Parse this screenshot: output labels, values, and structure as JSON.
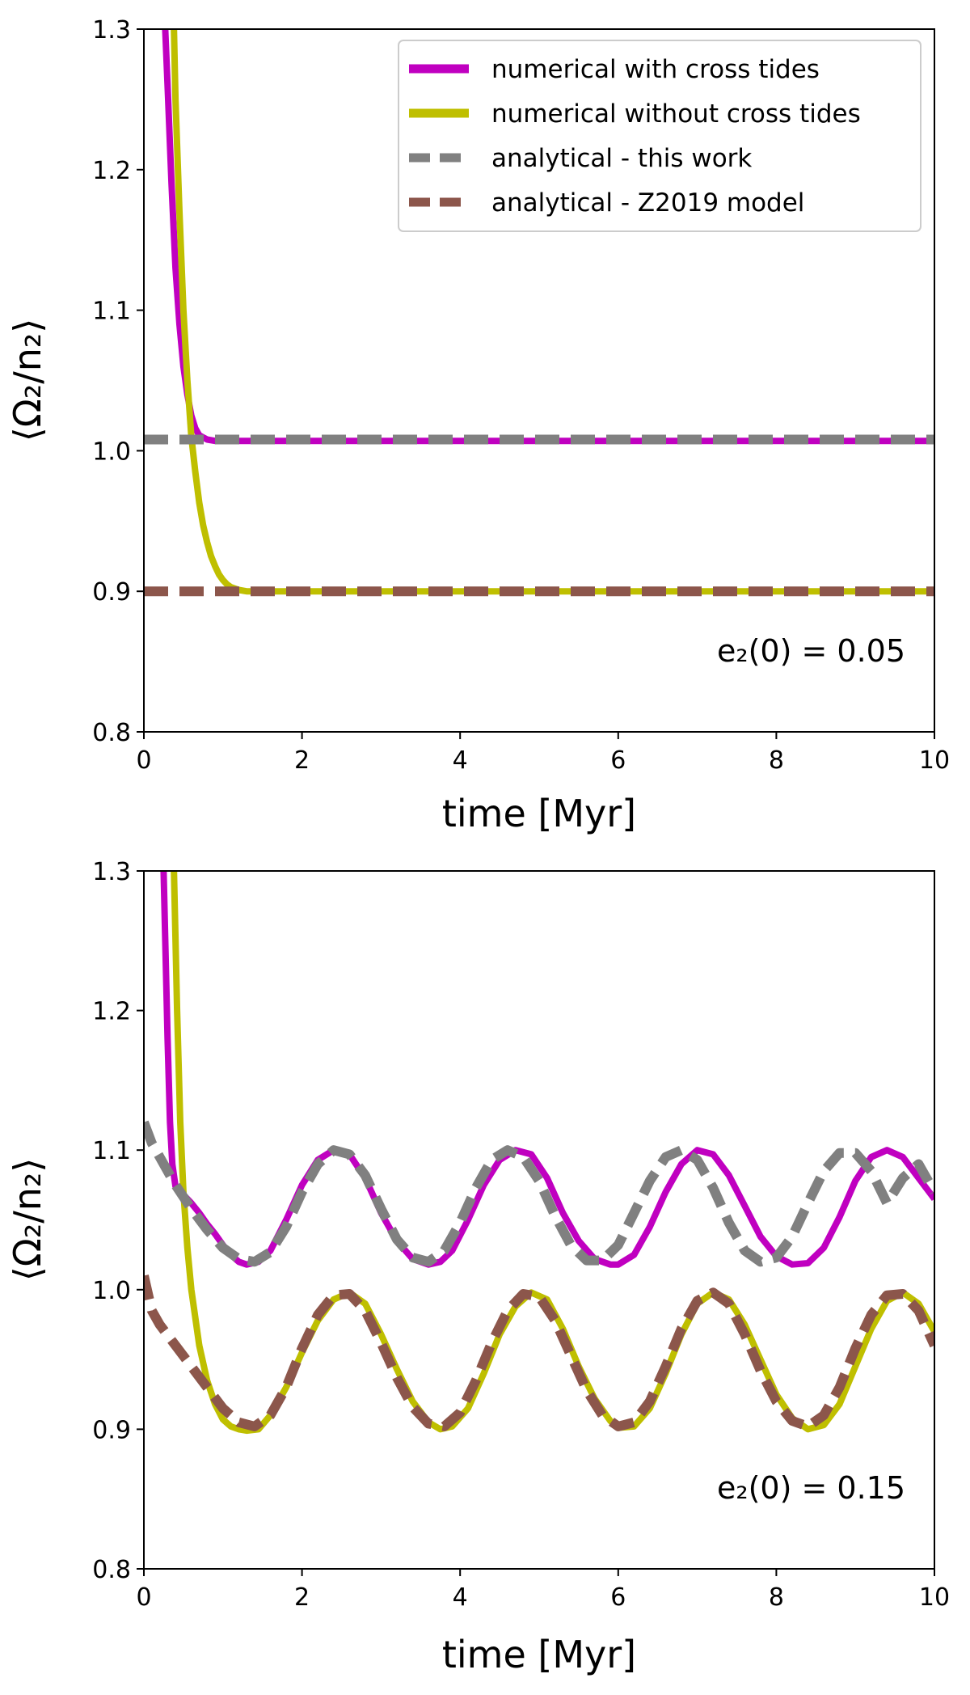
{
  "legend": {
    "entries": [
      {
        "label": "numerical with cross tides",
        "color": "#c000c0",
        "style": "solid"
      },
      {
        "label": "numerical without cross tides",
        "color": "#bfbf00",
        "style": "solid"
      },
      {
        "label": "analytical - this work",
        "color": "#808080",
        "style": "dashed"
      },
      {
        "label": "analytical - Z2019 model",
        "color": "#8c564b",
        "style": "dashed"
      }
    ]
  },
  "chart_data": [
    {
      "type": "line",
      "xlabel": "time [Myr]",
      "ylabel": "⟨Ω₂/n₂⟩",
      "xlim": [
        0,
        10
      ],
      "ylim": [
        0.8,
        1.3
      ],
      "xticks": [
        "0",
        "2",
        "4",
        "6",
        "8",
        "10"
      ],
      "yticks": [
        "0.8",
        "0.9",
        "1.0",
        "1.1",
        "1.2",
        "1.3"
      ],
      "annotation": "e₂(0) = 0.05",
      "legend_position": "top-right",
      "grid": false,
      "series": [
        {
          "name": "numerical with cross tides",
          "color": "#c000c0",
          "style": "solid",
          "x": [
            0.27,
            0.3,
            0.35,
            0.4,
            0.45,
            0.5,
            0.55,
            0.6,
            0.65,
            0.7,
            0.8,
            0.9,
            1.0,
            1.5,
            2,
            4,
            6,
            8,
            10
          ],
          "y": [
            1.3,
            1.26,
            1.19,
            1.13,
            1.09,
            1.06,
            1.04,
            1.025,
            1.016,
            1.011,
            1.008,
            1.007,
            1.007,
            1.007,
            1.007,
            1.007,
            1.007,
            1.007,
            1.007
          ]
        },
        {
          "name": "numerical without cross tides",
          "color": "#bfbf00",
          "style": "solid",
          "x": [
            0.38,
            0.4,
            0.45,
            0.5,
            0.55,
            0.6,
            0.65,
            0.7,
            0.75,
            0.8,
            0.85,
            0.9,
            0.95,
            1.0,
            1.05,
            1.1,
            1.2,
            1.3,
            1.5,
            2,
            4,
            6,
            8,
            10
          ],
          "y": [
            1.3,
            1.25,
            1.17,
            1.1,
            1.05,
            1.01,
            0.985,
            0.963,
            0.947,
            0.935,
            0.925,
            0.918,
            0.912,
            0.908,
            0.905,
            0.903,
            0.901,
            0.9,
            0.9,
            0.9,
            0.9,
            0.9,
            0.9,
            0.9
          ]
        },
        {
          "name": "analytical - this work",
          "color": "#808080",
          "style": "dashed",
          "x": [
            0,
            10
          ],
          "y": [
            1.008,
            1.008
          ]
        },
        {
          "name": "analytical - Z2019 model",
          "color": "#8c564b",
          "style": "dashed",
          "x": [
            0,
            10
          ],
          "y": [
            0.9,
            0.9
          ]
        }
      ]
    },
    {
      "type": "line",
      "xlabel": "time [Myr]",
      "ylabel": "⟨Ω₂/n₂⟩",
      "xlim": [
        0,
        10
      ],
      "ylim": [
        0.8,
        1.3
      ],
      "xticks": [
        "0",
        "2",
        "4",
        "6",
        "8",
        "10"
      ],
      "yticks": [
        "0.8",
        "0.9",
        "1.0",
        "1.1",
        "1.2",
        "1.3"
      ],
      "annotation": "e₂(0) = 0.15",
      "grid": false,
      "series": [
        {
          "name": "numerical with cross tides",
          "color": "#c000c0",
          "style": "solid",
          "x": [
            0.25,
            0.3,
            0.33,
            0.36,
            0.4,
            0.5,
            0.6,
            0.7,
            0.8,
            0.9,
            1.0,
            1.1,
            1.2,
            1.3,
            1.45,
            1.6,
            1.8,
            2.0,
            2.2,
            2.4,
            2.6,
            2.8,
            3.0,
            3.2,
            3.4,
            3.6,
            3.75,
            3.9,
            4.1,
            4.3,
            4.5,
            4.7,
            4.9,
            5.1,
            5.3,
            5.5,
            5.7,
            5.9,
            6.0,
            6.2,
            6.4,
            6.6,
            6.8,
            7.0,
            7.2,
            7.4,
            7.6,
            7.8,
            8.0,
            8.2,
            8.4,
            8.6,
            8.8,
            9.0,
            9.2,
            9.4,
            9.6,
            9.8,
            10.0
          ],
          "y": [
            1.3,
            1.18,
            1.12,
            1.09,
            1.074,
            1.068,
            1.062,
            1.055,
            1.047,
            1.04,
            1.032,
            1.025,
            1.02,
            1.018,
            1.02,
            1.028,
            1.05,
            1.075,
            1.093,
            1.1,
            1.097,
            1.08,
            1.055,
            1.035,
            1.022,
            1.018,
            1.02,
            1.028,
            1.05,
            1.075,
            1.093,
            1.1,
            1.097,
            1.08,
            1.055,
            1.035,
            1.022,
            1.018,
            1.018,
            1.025,
            1.045,
            1.07,
            1.09,
            1.1,
            1.097,
            1.082,
            1.06,
            1.038,
            1.024,
            1.018,
            1.019,
            1.03,
            1.052,
            1.078,
            1.095,
            1.1,
            1.095,
            1.08,
            1.065
          ]
        },
        {
          "name": "numerical without cross tides",
          "color": "#bfbf00",
          "style": "solid",
          "x": [
            0.38,
            0.42,
            0.46,
            0.5,
            0.55,
            0.6,
            0.7,
            0.8,
            0.9,
            1.0,
            1.1,
            1.2,
            1.3,
            1.45,
            1.6,
            1.8,
            2.0,
            2.2,
            2.4,
            2.6,
            2.8,
            3.0,
            3.2,
            3.4,
            3.6,
            3.75,
            3.9,
            4.1,
            4.3,
            4.5,
            4.7,
            4.9,
            5.1,
            5.3,
            5.5,
            5.7,
            5.9,
            6.0,
            6.2,
            6.4,
            6.6,
            6.8,
            7.0,
            7.2,
            7.4,
            7.6,
            7.8,
            8.0,
            8.2,
            8.4,
            8.6,
            8.8,
            9.0,
            9.2,
            9.4,
            9.6,
            9.8,
            10.0
          ],
          "y": [
            1.3,
            1.2,
            1.12,
            1.07,
            1.03,
            1.0,
            0.96,
            0.935,
            0.918,
            0.907,
            0.902,
            0.9,
            0.899,
            0.9,
            0.91,
            0.93,
            0.955,
            0.978,
            0.993,
            0.998,
            0.99,
            0.968,
            0.943,
            0.92,
            0.905,
            0.9,
            0.902,
            0.915,
            0.94,
            0.968,
            0.988,
            0.998,
            0.993,
            0.972,
            0.945,
            0.922,
            0.906,
            0.901,
            0.902,
            0.915,
            0.94,
            0.968,
            0.99,
            0.998,
            0.993,
            0.975,
            0.95,
            0.925,
            0.908,
            0.9,
            0.903,
            0.918,
            0.945,
            0.972,
            0.992,
            0.998,
            0.99,
            0.97
          ]
        },
        {
          "name": "analytical - this work",
          "color": "#808080",
          "style": "dashed",
          "x": [
            0.0,
            0.1,
            0.2,
            0.3,
            0.4,
            0.6,
            0.8,
            1.0,
            1.2,
            1.4,
            1.6,
            1.8,
            2.0,
            2.2,
            2.4,
            2.6,
            2.8,
            3.0,
            3.2,
            3.4,
            3.6,
            3.8,
            4.0,
            4.2,
            4.4,
            4.6,
            4.8,
            5.0,
            5.2,
            5.4,
            5.6,
            5.8,
            6.0,
            6.2,
            6.4,
            6.6,
            6.8,
            7.0,
            7.2,
            7.4,
            7.6,
            7.8,
            8.0,
            8.2,
            8.4,
            8.6,
            8.8,
            9.0,
            9.2,
            9.4,
            9.6,
            9.8,
            10.0
          ],
          "y": [
            1.12,
            1.105,
            1.095,
            1.085,
            1.075,
            1.058,
            1.043,
            1.03,
            1.022,
            1.02,
            1.027,
            1.045,
            1.07,
            1.09,
            1.1,
            1.097,
            1.082,
            1.058,
            1.036,
            1.023,
            1.02,
            1.028,
            1.048,
            1.073,
            1.093,
            1.1,
            1.095,
            1.078,
            1.053,
            1.032,
            1.021,
            1.021,
            1.032,
            1.055,
            1.078,
            1.095,
            1.1,
            1.093,
            1.073,
            1.048,
            1.028,
            1.02,
            1.023,
            1.038,
            1.062,
            1.085,
            1.098,
            1.098,
            1.085,
            1.062,
            1.08,
            1.09,
            1.07
          ]
        },
        {
          "name": "analytical - Z2019 model",
          "color": "#8c564b",
          "style": "dashed",
          "x": [
            0.0,
            0.1,
            0.2,
            0.4,
            0.6,
            0.8,
            1.0,
            1.2,
            1.4,
            1.6,
            1.8,
            2.0,
            2.2,
            2.4,
            2.6,
            2.8,
            3.0,
            3.2,
            3.4,
            3.6,
            3.8,
            4.0,
            4.2,
            4.4,
            4.6,
            4.8,
            5.0,
            5.2,
            5.4,
            5.6,
            5.8,
            6.0,
            6.2,
            6.4,
            6.6,
            6.8,
            7.0,
            7.2,
            7.4,
            7.6,
            7.8,
            8.0,
            8.2,
            8.4,
            8.6,
            8.8,
            9.0,
            9.2,
            9.4,
            9.6,
            9.8,
            10.0
          ],
          "y": [
            1.01,
            0.985,
            0.975,
            0.96,
            0.945,
            0.93,
            0.915,
            0.905,
            0.902,
            0.91,
            0.93,
            0.958,
            0.982,
            0.996,
            0.997,
            0.985,
            0.962,
            0.937,
            0.916,
            0.904,
            0.902,
            0.912,
            0.935,
            0.962,
            0.985,
            0.997,
            0.995,
            0.978,
            0.953,
            0.928,
            0.91,
            0.902,
            0.905,
            0.92,
            0.945,
            0.972,
            0.992,
            0.998,
            0.99,
            0.968,
            0.942,
            0.92,
            0.906,
            0.902,
            0.91,
            0.93,
            0.958,
            0.982,
            0.996,
            0.997,
            0.985,
            0.96
          ]
        }
      ]
    }
  ]
}
